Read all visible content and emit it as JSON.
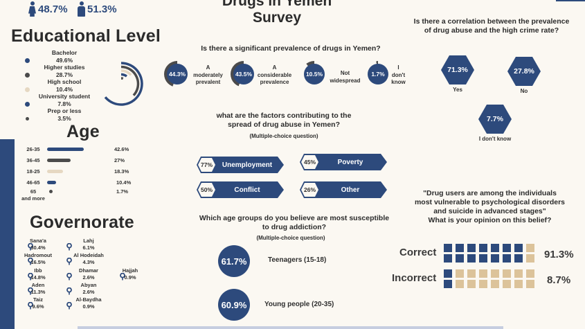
{
  "colors": {
    "navy": "#2d4a7c",
    "dark_gray": "#4b4b4b",
    "beige": "#e6d8c2",
    "tan": "#dcc39a",
    "background": "#fbf8f2",
    "strip": "#c6cde0"
  },
  "gender": [
    {
      "icon": "female-icon",
      "value": "48.7%"
    },
    {
      "icon": "male-icon",
      "value": "51.3%"
    }
  ],
  "title": {
    "line1": "\"Drugs in Yemen\"",
    "line2": "Survey"
  },
  "education": {
    "heading": "Educational Level",
    "items": [
      {
        "label": "Bachelor",
        "value": "49.6%",
        "pct": 49.6,
        "color": "#2d4a7c"
      },
      {
        "label": "Higher studies",
        "value": "28.7%",
        "pct": 28.7,
        "color": "#4b4b4b"
      },
      {
        "label": "High school",
        "value": "10.4%",
        "pct": 10.4,
        "color": "#e6d8c2"
      },
      {
        "label": "University student",
        "value": "7.8%",
        "pct": 7.8,
        "color": "#2d4a7c"
      },
      {
        "label": "Prep or less",
        "value": "3.5%",
        "pct": 3.5,
        "color": "#4b4b4b"
      }
    ]
  },
  "age": {
    "heading": "Age",
    "items": [
      {
        "label": "26-35",
        "value": "42.6%",
        "pct": 42.6,
        "color": "#2d4a7c"
      },
      {
        "label": "36-45",
        "value": "27%",
        "pct": 27,
        "color": "#4b4b4b"
      },
      {
        "label": "18-25",
        "value": "18.3%",
        "pct": 18.3,
        "color": "#e6d8c2"
      },
      {
        "label": "46-65",
        "value": "10.4%",
        "pct": 10.4,
        "color": "#2d4a7c"
      },
      {
        "label": "65",
        "label2": "and more",
        "value": "1.7%",
        "pct": 1.7,
        "color": "#4b4b4b"
      }
    ]
  },
  "governorate": {
    "heading": "Governorate",
    "items": [
      {
        "name": "Sana'a",
        "value": "30.4%"
      },
      {
        "name": "Hadromout",
        "value": "16.5%"
      },
      {
        "name": "Ibb",
        "value": "14.8%"
      },
      {
        "name": "Aden",
        "value": "11.3%"
      },
      {
        "name": "Taiz",
        "value": "9.6%"
      },
      {
        "name": "Lahj",
        "value": "6.1%"
      },
      {
        "name": "Al Hodeidah",
        "value": "4.3%"
      },
      {
        "name": "Dhamar",
        "value": "2.6%"
      },
      {
        "name": "Abyan",
        "value": "2.6%"
      },
      {
        "name": "Al-Baydha",
        "value": "0.9%"
      },
      {
        "name": "Hajjah",
        "value": "0.9%"
      }
    ]
  },
  "prevalence": {
    "question": "Is there a significant prevalence of drugs in Yemen?",
    "items": [
      {
        "value": "44.3%",
        "pct": 44.3,
        "l1": "A",
        "l2": "moderately",
        "l3": "prevalent"
      },
      {
        "value": "43.5%",
        "pct": 43.5,
        "l1": "A",
        "l2": "considerable",
        "l3": "prevalence"
      },
      {
        "value": "10.5%",
        "pct": 10.5,
        "l1": "Not",
        "l2": "widespread",
        "l3": ""
      },
      {
        "value": "1.7%",
        "pct": 1.7,
        "l1": "I",
        "l2": "don't",
        "l3": "know"
      }
    ]
  },
  "factors": {
    "question_line1": "what are the factors contributing to the",
    "question_line2": "spread of drug abuse in Yemen?",
    "note": "(Multiple-choice question)",
    "items": [
      {
        "value": "77%",
        "label": "Unemployment"
      },
      {
        "value": "45%",
        "label": "Poverty"
      },
      {
        "value": "50%",
        "label": "Conflict"
      },
      {
        "value": "26%",
        "label": "Other"
      }
    ]
  },
  "crime": {
    "question_line1": "Is there a correlation between the prevalence",
    "question_line2": "of drug abuse and the high crime rate?",
    "items": [
      {
        "value": "71.3%",
        "label": "Yes"
      },
      {
        "value": "27.8%",
        "label": "No"
      },
      {
        "value": "7.7%",
        "label": "I don't know"
      }
    ]
  },
  "age_groups": {
    "question_line1": "Which age groups do you believe are most susceptible",
    "question_line2": "to drug addiction?",
    "note": "(Multiple-choice question)",
    "items": [
      {
        "value": "61.7%",
        "label": "Teenagers (15-18)"
      },
      {
        "value": "60.9%",
        "label": "Young people (20-35)"
      }
    ]
  },
  "belief": {
    "line1": "\"Drug users are among the individuals",
    "line2": "most vulnerable to psychological disorders",
    "line3": "and suicide in advanced stages\"",
    "line4": "What is your opinion on this belief?",
    "items": [
      {
        "label": "Correct",
        "value": "91.3%",
        "filled": 14,
        "total": 16
      },
      {
        "label": "Incorrect",
        "value": "8.7%",
        "filled": 2,
        "total": 16
      }
    ]
  }
}
